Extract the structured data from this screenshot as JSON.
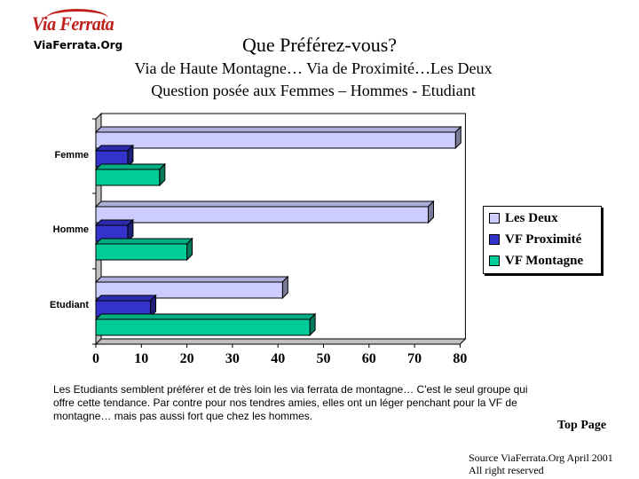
{
  "logo": {
    "word": "Via Ferrata",
    "site": "ViaFerrata.Org"
  },
  "header": {
    "title": "Que Préférez-vous?",
    "subtitle1": "Via de Haute Montagne… Via de Proximité…Les Deux",
    "subtitle2": "Question posée aux Femmes – Hommes - Etudiant"
  },
  "chart_data": {
    "type": "bar",
    "orientation": "horizontal",
    "categories": [
      "Femme",
      "Homme",
      "Etudiant"
    ],
    "series": [
      {
        "name": "Les Deux",
        "values": [
          79,
          73,
          41
        ],
        "color": "#ccccff"
      },
      {
        "name": "VF Proximité",
        "values": [
          7,
          7,
          12
        ],
        "color": "#3333cc"
      },
      {
        "name": "VF Montagne",
        "values": [
          14,
          20,
          47
        ],
        "color": "#00cc99"
      }
    ],
    "xlim": [
      0,
      80
    ],
    "xticks": [
      0,
      10,
      20,
      30,
      40,
      50,
      60,
      70,
      80
    ],
    "grid": false,
    "three_d": true,
    "legend_position": "right"
  },
  "comment": "Les Etudiants semblent préférer et de très loin les via ferrata de montagne… C'est le seul groupe qui offre cette tendance. Par contre pour nos tendres amies, elles ont un léger penchant pour la VF de montagne… mais pas aussi fort que chez les hommes.",
  "nav": {
    "top_page": "Top Page"
  },
  "footer": {
    "source_line1": "Source ViaFerrata.Org April 2001",
    "source_line2": "All right reserved"
  }
}
